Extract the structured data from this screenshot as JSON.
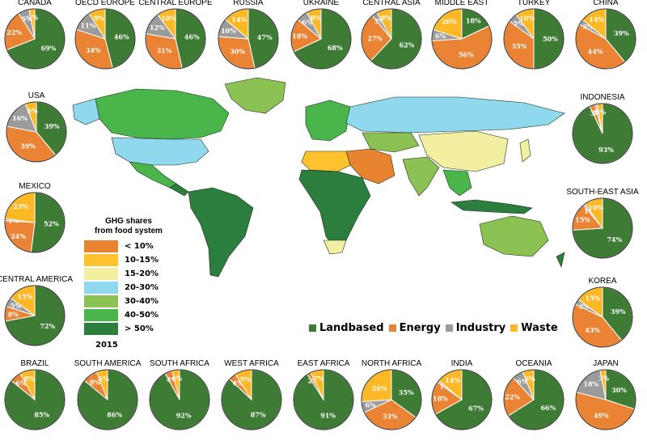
{
  "colors": {
    "landbased": "#3e7b35",
    "energy": "#ea8434",
    "industry": "#9b9b9b",
    "waste": "#fdb826"
  },
  "category_legend": [
    {
      "name": "Landbased",
      "color": "#3e7b35"
    },
    {
      "name": "Energy",
      "color": "#ea8434"
    },
    {
      "name": "Industry",
      "color": "#9b9b9b"
    },
    {
      "name": "Waste",
      "color": "#fdb826"
    }
  ],
  "share_legend": {
    "title_lines": [
      "GHG shares",
      "from food system"
    ],
    "year": "2015",
    "classes": [
      {
        "label": "< 10%",
        "color": "#e8842f"
      },
      {
        "label": "10-15%",
        "color": "#fdc22d"
      },
      {
        "label": "15-20%",
        "color": "#f2f0a0"
      },
      {
        "label": "20-30%",
        "color": "#8fd8ee"
      },
      {
        "label": "30-40%",
        "color": "#8cc153"
      },
      {
        "label": "40-50%",
        "color": "#49b54a"
      },
      {
        "label": "> 50%",
        "color": "#2b7e3e"
      }
    ]
  },
  "regions": [
    {
      "name": "CANADA",
      "values": {
        "landbased": 69,
        "energy": 22,
        "industry": 6,
        "waste": 3
      }
    },
    {
      "name": "OECD EUROPE",
      "values": {
        "landbased": 46,
        "energy": 34,
        "industry": 11,
        "waste": 9
      }
    },
    {
      "name": "CENTRAL EUROPE",
      "values": {
        "landbased": 46,
        "energy": 31,
        "industry": 12,
        "waste": 10
      }
    },
    {
      "name": "RUSSIA",
      "values": {
        "landbased": 47,
        "energy": 30,
        "industry": 10,
        "waste": 14
      }
    },
    {
      "name": "UKRAINE",
      "values": {
        "landbased": 68,
        "energy": 18,
        "industry": 6,
        "waste": 8
      }
    },
    {
      "name": "CENTRAL ASIA",
      "values": {
        "landbased": 62,
        "energy": 27,
        "industry": 3,
        "waste": 8
      }
    },
    {
      "name": "MIDDLE EAST",
      "values": {
        "landbased": 18,
        "energy": 56,
        "industry": 6,
        "waste": 20
      }
    },
    {
      "name": "TURKEY",
      "values": {
        "landbased": 50,
        "energy": 35,
        "industry": 5,
        "waste": 10
      }
    },
    {
      "name": "CHINA",
      "values": {
        "landbased": 39,
        "energy": 44,
        "industry": 3,
        "waste": 14
      }
    },
    {
      "name": "USA",
      "values": {
        "landbased": 39,
        "energy": 39,
        "industry": 16,
        "waste": 6
      }
    },
    {
      "name": "INDONESIA",
      "values": {
        "landbased": 93,
        "energy": 3,
        "industry": 1,
        "waste": 3
      }
    },
    {
      "name": "MEXICO",
      "values": {
        "landbased": 52,
        "energy": 24,
        "industry": 1,
        "waste": 23
      }
    },
    {
      "name": "SOUTH-EAST ASIA",
      "values": {
        "landbased": 74,
        "energy": 15,
        "industry": 1,
        "waste": 10
      }
    },
    {
      "name": "CENTRAL AMERICA",
      "values": {
        "landbased": 72,
        "energy": 8,
        "industry": 5,
        "waste": 15
      }
    },
    {
      "name": "KOREA",
      "values": {
        "landbased": 39,
        "energy": 43,
        "industry": 3,
        "waste": 15
      }
    },
    {
      "name": "BRAZIL",
      "values": {
        "landbased": 85,
        "energy": 6,
        "industry": 0,
        "waste": 8
      }
    },
    {
      "name": "SOUTH AMERICA",
      "values": {
        "landbased": 86,
        "energy": 8,
        "industry": 0,
        "waste": 6
      }
    },
    {
      "name": "SOUTH AFRICA",
      "values": {
        "landbased": 92,
        "energy": 4,
        "industry": 0,
        "waste": 4
      }
    },
    {
      "name": "WEST AFRICA",
      "values": {
        "landbased": 87,
        "energy": 4,
        "industry": 0,
        "waste": 9
      }
    },
    {
      "name": "EAST AFRICA",
      "values": {
        "landbased": 91,
        "energy": 2,
        "industry": 0,
        "waste": 7
      }
    },
    {
      "name": "NORTH AFRICA",
      "values": {
        "landbased": 35,
        "energy": 33,
        "industry": 6,
        "waste": 26
      }
    },
    {
      "name": "INDIA",
      "values": {
        "landbased": 67,
        "energy": 18,
        "industry": 1,
        "waste": 14
      }
    },
    {
      "name": "OCEANIA",
      "values": {
        "landbased": 66,
        "energy": 22,
        "industry": 6,
        "waste": 6
      }
    },
    {
      "name": "JAPAN",
      "values": {
        "landbased": 30,
        "energy": 49,
        "industry": 18,
        "waste": 3
      }
    }
  ]
}
